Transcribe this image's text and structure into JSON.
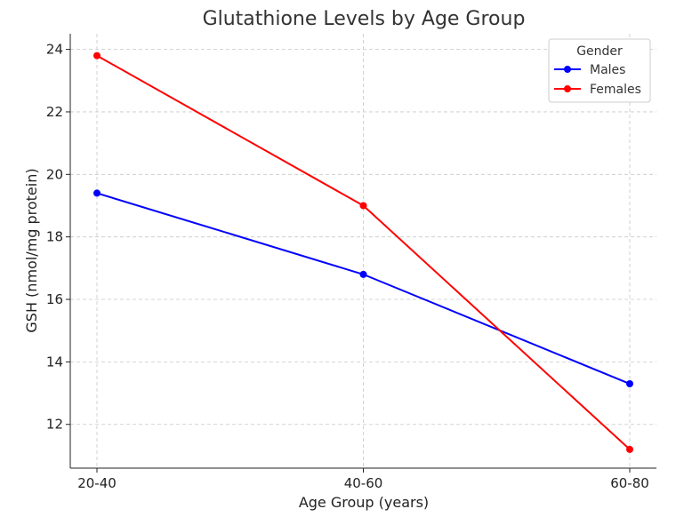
{
  "chart_data": {
    "type": "line",
    "title": "Glutathione Levels by Age Group",
    "xlabel": "Age Group (years)",
    "ylabel": "GSH (nmol/mg protein)",
    "categories": [
      "20-40",
      "40-60",
      "60-80"
    ],
    "ylim": [
      10.6,
      24.5
    ],
    "yticks": [
      12,
      14,
      16,
      18,
      20,
      22,
      24
    ],
    "grid": true,
    "legend": {
      "title": "Gender",
      "placement": "top-right"
    },
    "series": [
      {
        "name": "Males",
        "values": [
          19.4,
          16.8,
          13.3
        ],
        "color": "#0000ff"
      },
      {
        "name": "Females",
        "values": [
          23.8,
          19.0,
          11.2
        ],
        "color": "#ff0000"
      }
    ]
  }
}
